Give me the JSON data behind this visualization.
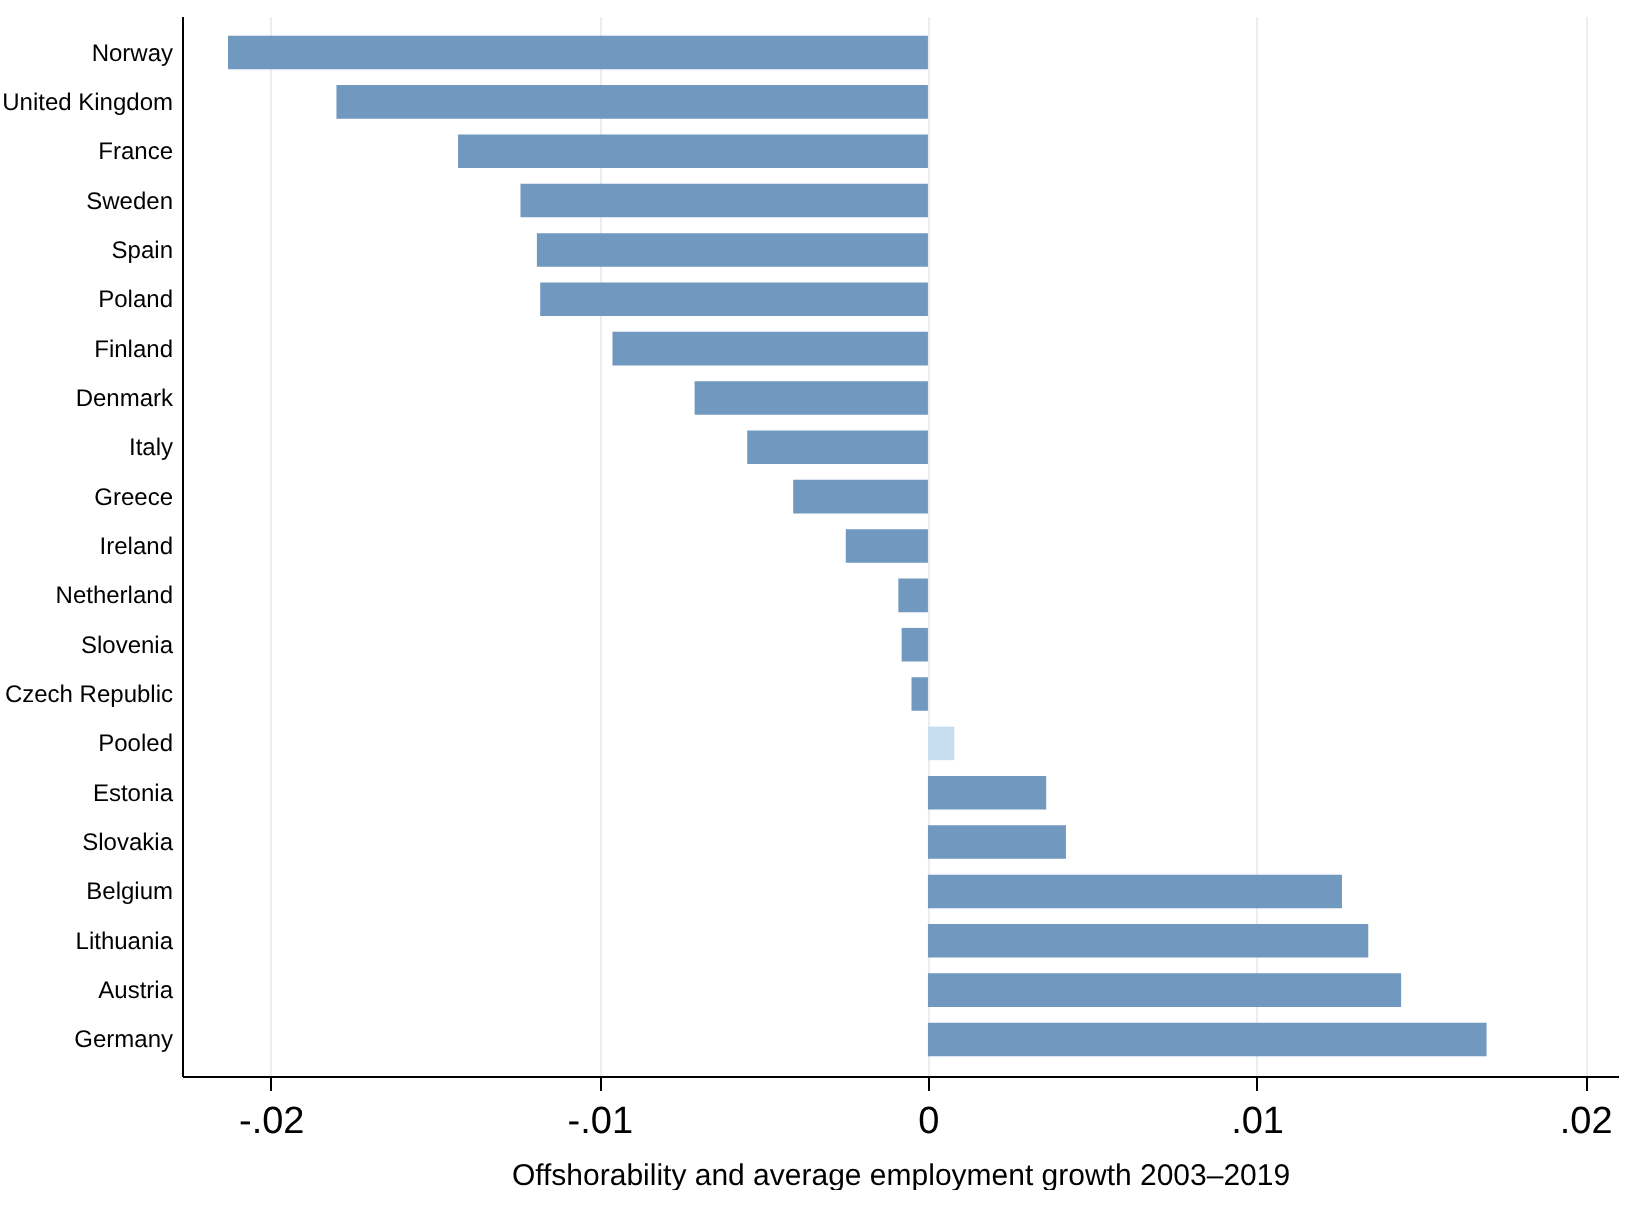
{
  "chart_data": {
    "type": "bar",
    "orientation": "horizontal",
    "xlabel": "Offshorability and average employment growth 2003–2019",
    "categories": [
      "Norway",
      "United Kingdom",
      "France",
      "Sweden",
      "Spain",
      "Poland",
      "Finland",
      "Denmark",
      "Italy",
      "Greece",
      "Ireland",
      "Netherland",
      "Slovenia",
      "Czech Republic",
      "Pooled",
      "Estonia",
      "Slovakia",
      "Belgium",
      "Lithuania",
      "Austria",
      "Germany"
    ],
    "values": [
      -0.0213,
      -0.018,
      -0.0143,
      -0.0124,
      -0.0119,
      -0.0118,
      -0.0096,
      -0.0071,
      -0.0055,
      -0.0041,
      -0.0025,
      -0.0009,
      -0.0008,
      -0.0005,
      0.0008,
      0.0036,
      0.0042,
      0.0126,
      0.0134,
      0.0144,
      0.017
    ],
    "colors": [
      "#7199bf",
      "#7199bf",
      "#7199bf",
      "#7199bf",
      "#7199bf",
      "#7199bf",
      "#7199bf",
      "#7199bf",
      "#7199bf",
      "#7199bf",
      "#7199bf",
      "#7199bf",
      "#7199bf",
      "#7199bf",
      "#c6dcef",
      "#7199bf",
      "#7199bf",
      "#7199bf",
      "#7199bf",
      "#7199bf",
      "#7199bf"
    ],
    "xlim": [
      -0.0227,
      0.021
    ],
    "xticks": [
      {
        "value": -0.02,
        "label": "-.02"
      },
      {
        "value": -0.01,
        "label": "-.01"
      },
      0,
      {
        "value": 0.01,
        "label": ".01"
      },
      {
        "value": 0.02,
        "label": ".02"
      }
    ],
    "grid": "x"
  }
}
